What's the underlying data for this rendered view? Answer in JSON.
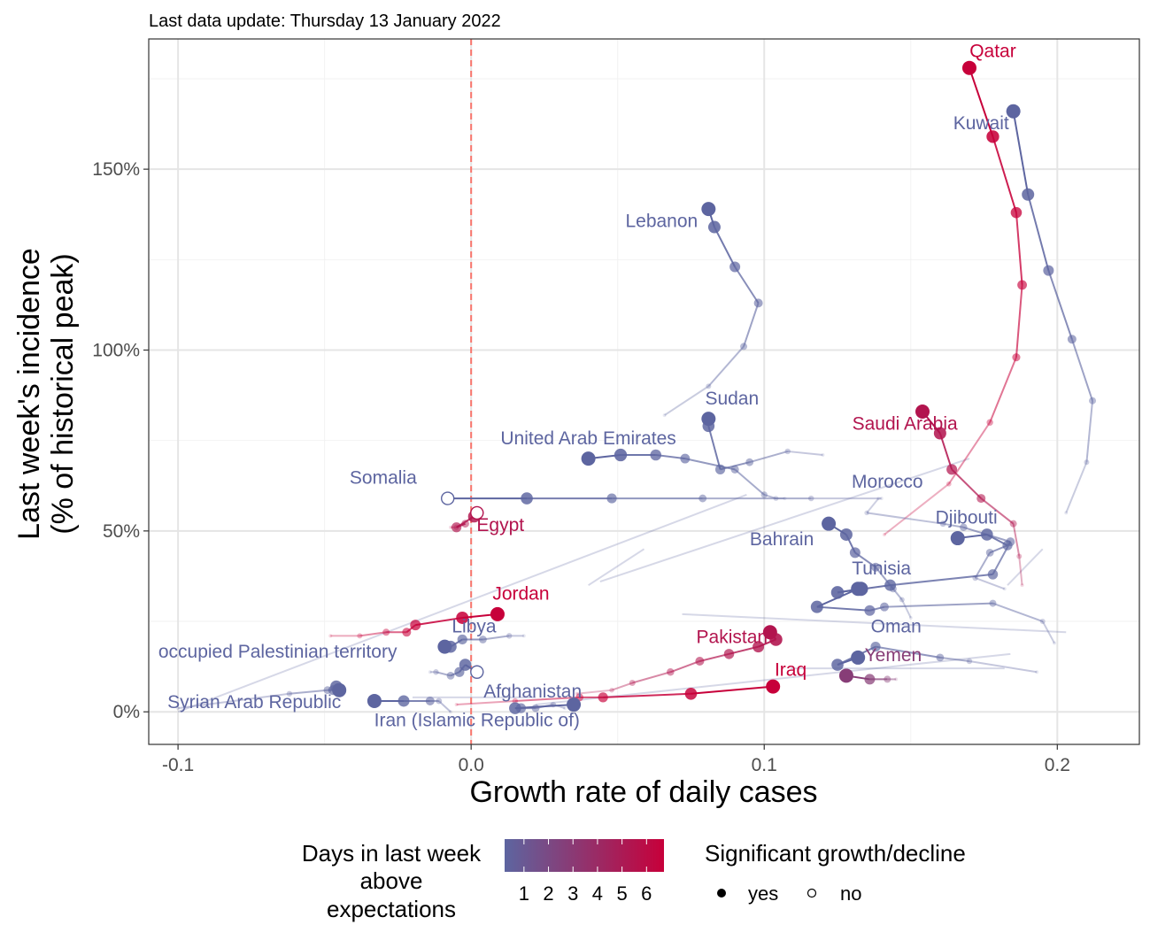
{
  "chart_data": {
    "type": "scatter",
    "subtitle": "Last data update: Thursday 13 January 2022",
    "xlabel": "Growth rate of daily cases",
    "ylabel_line1": "Last week's incidence",
    "ylabel_line2": "(% of historical peak)",
    "xlim": [
      -0.11,
      0.228
    ],
    "ylim": [
      -9,
      186
    ],
    "x_ticks": [
      -0.1,
      0.0,
      0.1,
      0.2
    ],
    "x_tick_labels": [
      "-0.1",
      "0.0",
      "0.1",
      "0.2"
    ],
    "y_ticks": [
      0,
      50,
      100,
      150
    ],
    "y_tick_labels": [
      "0%",
      "50%",
      "100%",
      "150%"
    ],
    "grid": true,
    "reference_line": {
      "x": 0,
      "color": "#f8766d",
      "style": "dashed"
    },
    "color_scale": {
      "title_lines": [
        "Days in last week",
        "above",
        "expectations"
      ],
      "low_color": "#5d65a0",
      "high_color": "#c7003a",
      "tick_labels": [
        "1",
        "2",
        "3",
        "4",
        "5",
        "6"
      ],
      "tick_values": [
        1,
        2,
        3,
        4,
        5,
        6
      ]
    },
    "shape_legend": {
      "title": "Significant growth/decline",
      "items": [
        {
          "label": "yes",
          "filled": true
        },
        {
          "label": "no",
          "filled": false
        }
      ]
    },
    "series": [
      {
        "name": "Qatar",
        "days": 6,
        "points": [
          [
            0.141,
            49
          ],
          [
            0.163,
            63
          ],
          [
            0.177,
            80
          ],
          [
            0.186,
            98
          ],
          [
            0.188,
            118
          ],
          [
            0.186,
            138
          ],
          [
            0.178,
            159
          ],
          [
            0.17,
            178
          ]
        ],
        "significant": true,
        "label_at": [
          0.178,
          181
        ]
      },
      {
        "name": "Kuwait",
        "days": 1,
        "points": [
          [
            0.203,
            55
          ],
          [
            0.21,
            69
          ],
          [
            0.212,
            86
          ],
          [
            0.205,
            103
          ],
          [
            0.197,
            122
          ],
          [
            0.19,
            143
          ],
          [
            0.185,
            166
          ]
        ],
        "significant": true,
        "label_at": [
          0.174,
          161
        ]
      },
      {
        "name": "Lebanon",
        "days": 1,
        "points": [
          [
            0.066,
            82
          ],
          [
            0.081,
            90
          ],
          [
            0.093,
            101
          ],
          [
            0.098,
            113
          ],
          [
            0.09,
            123
          ],
          [
            0.083,
            134
          ],
          [
            0.081,
            139
          ]
        ],
        "significant": true,
        "label_at": [
          0.065,
          134
        ]
      },
      {
        "name": "Saudi Arabia",
        "days": 5,
        "points": [
          [
            0.188,
            35
          ],
          [
            0.187,
            43
          ],
          [
            0.185,
            52
          ],
          [
            0.174,
            59
          ],
          [
            0.164,
            67
          ],
          [
            0.16,
            77
          ],
          [
            0.154,
            83
          ]
        ],
        "significant": true,
        "label_at": [
          0.148,
          78
        ]
      },
      {
        "name": "Sudan",
        "days": 1,
        "points": [
          [
            0.12,
            71
          ],
          [
            0.108,
            72
          ],
          [
            0.095,
            69
          ],
          [
            0.085,
            67
          ],
          [
            0.081,
            79
          ],
          [
            0.081,
            81
          ]
        ],
        "significant": true,
        "label_at": [
          0.089,
          85
        ]
      },
      {
        "name": "United Arab Emirates",
        "days": 1,
        "points": [
          [
            0.107,
            59
          ],
          [
            0.104,
            59
          ],
          [
            0.1,
            60
          ],
          [
            0.09,
            67
          ],
          [
            0.073,
            70
          ],
          [
            0.063,
            71
          ],
          [
            0.051,
            71
          ],
          [
            0.04,
            70
          ]
        ],
        "significant": true,
        "label_at": [
          0.04,
          74
        ]
      },
      {
        "name": "Somalia",
        "days": 1,
        "points": [
          [
            0.14,
            59
          ],
          [
            0.116,
            59
          ],
          [
            0.079,
            59
          ],
          [
            0.048,
            59
          ],
          [
            0.019,
            59
          ],
          [
            -0.008,
            59
          ]
        ],
        "significant": false,
        "label_at": [
          -0.03,
          63
        ]
      },
      {
        "name": "Egypt",
        "days": 5,
        "points": [
          [
            -0.007,
            51
          ],
          [
            -0.005,
            51
          ],
          [
            -0.002,
            52
          ],
          [
            -0.005,
            51
          ],
          [
            0.001,
            54
          ],
          [
            0.002,
            55
          ]
        ],
        "significant": false,
        "label_at": [
          0.01,
          50
        ]
      },
      {
        "name": "Morocco",
        "days": 1,
        "points": [
          [
            0.139,
            59
          ],
          [
            0.135,
            55
          ],
          [
            0.161,
            52
          ],
          [
            0.168,
            51
          ],
          [
            0.184,
            47
          ],
          [
            0.178,
            38
          ],
          [
            0.143,
            35
          ],
          [
            0.125,
            33
          ],
          [
            0.133,
            34
          ]
        ],
        "significant": true,
        "label_at": [
          0.142,
          62
        ]
      },
      {
        "name": "Djibouti",
        "days": 1,
        "points": [
          [
            0.182,
            34
          ],
          [
            0.172,
            37
          ],
          [
            0.177,
            44
          ],
          [
            0.183,
            46
          ],
          [
            0.176,
            49
          ],
          [
            0.166,
            48
          ]
        ],
        "significant": true,
        "label_at": [
          0.169,
          52
        ]
      },
      {
        "name": "Bahrain",
        "days": 1,
        "points": [
          [
            0.15,
            26
          ],
          [
            0.147,
            31
          ],
          [
            0.144,
            34
          ],
          [
            0.138,
            40
          ],
          [
            0.131,
            44
          ],
          [
            0.128,
            49
          ],
          [
            0.122,
            52
          ]
        ],
        "significant": true,
        "label_at": [
          0.106,
          46
        ]
      },
      {
        "name": "Tunisia",
        "days": 1,
        "points": [
          [
            0.199,
            19
          ],
          [
            0.195,
            25
          ],
          [
            0.178,
            30
          ],
          [
            0.141,
            29
          ],
          [
            0.136,
            28
          ],
          [
            0.118,
            29
          ],
          [
            0.132,
            34
          ]
        ],
        "significant": true,
        "label_at": [
          0.14,
          38
        ]
      },
      {
        "name": "Oman",
        "days": 1,
        "points": [
          [
            0.193,
            11
          ],
          [
            0.17,
            14
          ],
          [
            0.16,
            15
          ],
          [
            0.138,
            18
          ],
          [
            0.125,
            13
          ],
          [
            0.132,
            15
          ]
        ],
        "significant": true,
        "label_at": [
          0.145,
          22
        ]
      },
      {
        "name": "Yemen",
        "days": 3,
        "points": [
          [
            0.145,
            9
          ],
          [
            0.142,
            9
          ],
          [
            0.136,
            9
          ],
          [
            0.128,
            10
          ]
        ],
        "significant": true,
        "label_at": [
          0.144,
          14
        ]
      },
      {
        "name": "Jordan",
        "days": 6,
        "points": [
          [
            -0.048,
            21
          ],
          [
            -0.038,
            21
          ],
          [
            -0.029,
            22
          ],
          [
            -0.022,
            22
          ],
          [
            -0.019,
            24
          ],
          [
            -0.003,
            26
          ],
          [
            0.009,
            27
          ]
        ],
        "significant": true,
        "label_at": [
          0.017,
          31
        ]
      },
      {
        "name": "Libya",
        "days": 1,
        "points": [
          [
            0.018,
            21
          ],
          [
            0.013,
            21
          ],
          [
            0.004,
            20
          ],
          [
            -0.003,
            20
          ],
          [
            -0.007,
            18
          ],
          [
            -0.009,
            18
          ]
        ],
        "significant": true,
        "label_at": [
          0.001,
          22
        ]
      },
      {
        "name": "occupied Palestinian territory",
        "days": 1,
        "points": [
          [
            -0.014,
            11
          ],
          [
            -0.012,
            11
          ],
          [
            -0.007,
            10
          ],
          [
            -0.004,
            11
          ],
          [
            -0.002,
            13
          ],
          [
            0.002,
            11
          ]
        ],
        "significant": false,
        "label_at": [
          -0.066,
          15
        ]
      },
      {
        "name": "Pakistan",
        "days": 5,
        "points": [
          [
            0.036,
            5
          ],
          [
            0.048,
            6
          ],
          [
            0.055,
            8
          ],
          [
            0.068,
            11
          ],
          [
            0.078,
            14
          ],
          [
            0.088,
            16
          ],
          [
            0.098,
            18
          ],
          [
            0.104,
            20
          ],
          [
            0.102,
            22
          ]
        ],
        "significant": true,
        "label_at": [
          0.089,
          19
        ]
      },
      {
        "name": "Iraq",
        "days": 6,
        "points": [
          [
            -0.005,
            2
          ],
          [
            0.015,
            3
          ],
          [
            0.037,
            4
          ],
          [
            0.045,
            4
          ],
          [
            0.075,
            5
          ],
          [
            0.103,
            7
          ]
        ],
        "significant": true,
        "label_at": [
          0.109,
          10
        ]
      },
      {
        "name": "Syrian Arab Republic",
        "days": 1,
        "points": [
          [
            -0.1,
            1
          ],
          [
            -0.062,
            5
          ],
          [
            -0.049,
            6
          ],
          [
            -0.047,
            6
          ],
          [
            -0.046,
            7
          ],
          [
            -0.045,
            6
          ]
        ],
        "significant": true,
        "label_at": [
          -0.074,
          1
        ]
      },
      {
        "name": "Iran (Islamic Republic of)",
        "days": 1,
        "points": [
          [
            -0.007,
            0
          ],
          [
            -0.011,
            3
          ],
          [
            -0.014,
            3
          ],
          [
            -0.023,
            3
          ],
          [
            -0.033,
            3
          ]
        ],
        "significant": true,
        "label_at": [
          0.002,
          -4
        ]
      },
      {
        "name": "Afghanistan",
        "days": 1,
        "points": [
          [
            0.032,
            1
          ],
          [
            0.028,
            2
          ],
          [
            0.022,
            1
          ],
          [
            0.017,
            1
          ],
          [
            0.015,
            1
          ],
          [
            0.035,
            2
          ]
        ],
        "significant": true,
        "label_at": [
          0.021,
          4
        ]
      }
    ],
    "faint_lines": [
      [
        [
          -0.02,
          4
        ],
        [
          0.022,
          4
        ]
      ],
      [
        [
          -0.1,
          0
        ],
        [
          0.094,
          60
        ]
      ],
      [
        [
          0.04,
          35
        ],
        [
          0.059,
          45
        ]
      ],
      [
        [
          0.044,
          36
        ],
        [
          0.17,
          70
        ]
      ],
      [
        [
          0.022,
          2
        ],
        [
          0.184,
          16
        ]
      ],
      [
        [
          0.183,
          35
        ],
        [
          0.195,
          45
        ]
      ],
      [
        [
          0.072,
          27
        ],
        [
          0.203,
          22
        ]
      ],
      [
        [
          0.109,
          12
        ],
        [
          0.182,
          12
        ]
      ]
    ]
  },
  "colors": {
    "panel_border": "#333333",
    "grid_major": "#e5e5e5",
    "grid_minor": "#f2f2f2",
    "tick_text": "#4d4d4d"
  }
}
